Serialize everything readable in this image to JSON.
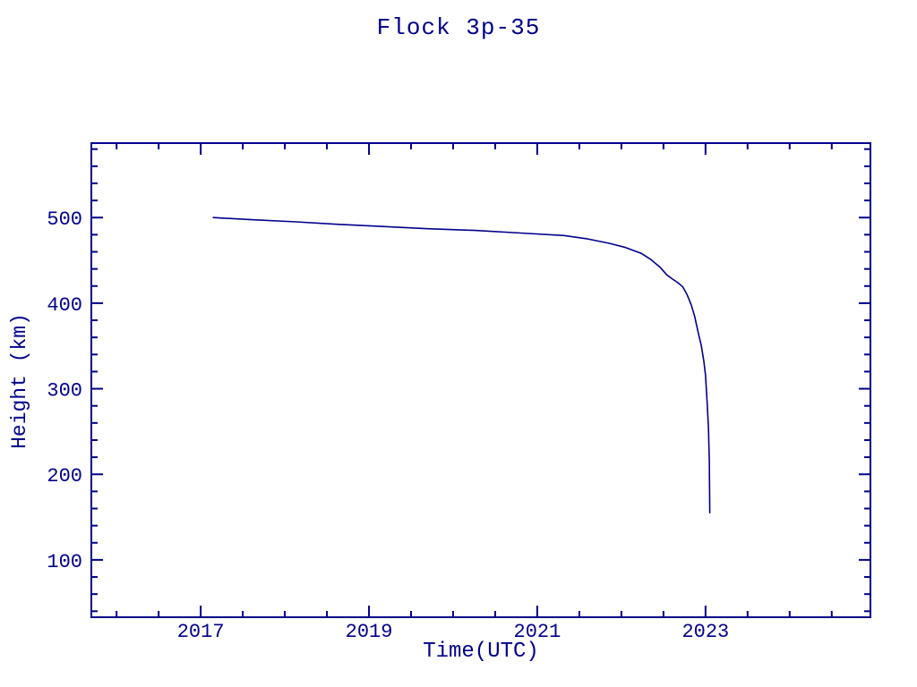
{
  "page": {
    "background_color": "#ffffff",
    "accent_color": "#00008b"
  },
  "chart_data": {
    "type": "line",
    "title": "Flock 3p-35",
    "xlabel": "Time(UTC)",
    "ylabel": "Height (km)",
    "xlim": [
      2015.7,
      2024.96
    ],
    "ylim": [
      33,
      587
    ],
    "x_major_ticks": [
      2017,
      2019,
      2021,
      2023
    ],
    "x_tick_labels": [
      "2017",
      "2019",
      "2021",
      "2023"
    ],
    "x_minor_step": 0.5,
    "y_major_ticks": [
      100,
      200,
      300,
      400,
      500
    ],
    "y_tick_labels": [
      "100",
      "200",
      "300",
      "400",
      "500"
    ],
    "y_minor_step": 20,
    "grid": "off",
    "legend": "none",
    "line_color": "#00008b",
    "series": [
      {
        "name": "orbital-height",
        "points": [
          [
            2017.15,
            500
          ],
          [
            2017.6,
            497.5
          ],
          [
            2018.13,
            495
          ],
          [
            2018.66,
            492
          ],
          [
            2019.19,
            489.5
          ],
          [
            2019.7,
            487
          ],
          [
            2020.26,
            485
          ],
          [
            2020.8,
            482
          ],
          [
            2021.32,
            479
          ],
          [
            2021.6,
            475
          ],
          [
            2021.85,
            470
          ],
          [
            2022.05,
            465
          ],
          [
            2022.24,
            458
          ],
          [
            2022.35,
            451
          ],
          [
            2022.46,
            442
          ],
          [
            2022.54,
            433
          ],
          [
            2022.61,
            428
          ],
          [
            2022.67,
            424
          ],
          [
            2022.73,
            419
          ],
          [
            2022.78,
            410
          ],
          [
            2022.83,
            398
          ],
          [
            2022.87,
            385
          ],
          [
            2022.91,
            367
          ],
          [
            2022.95,
            350
          ],
          [
            2022.98,
            332
          ],
          [
            2023.0,
            315
          ],
          [
            2023.02,
            283
          ],
          [
            2023.035,
            255
          ],
          [
            2023.045,
            215
          ],
          [
            2023.05,
            155
          ]
        ]
      }
    ]
  }
}
